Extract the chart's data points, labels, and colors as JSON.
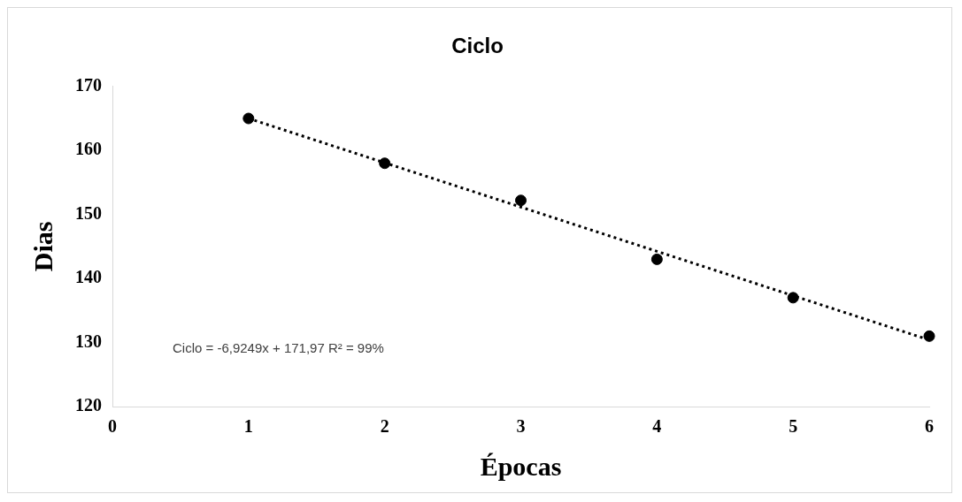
{
  "chart_data": {
    "type": "scatter",
    "title": "Ciclo",
    "xlabel": "Épocas",
    "ylabel": "Dias",
    "x": [
      1,
      2,
      3,
      4,
      5,
      6
    ],
    "series": [
      {
        "type": "scatter",
        "color": "#000000",
        "marker": "circle",
        "values": [
          165,
          158,
          152.2,
          143,
          137,
          131
        ]
      },
      {
        "type": "line",
        "color": "#000000",
        "line_style": "dotted",
        "marker": "none",
        "x": [
          1,
          6
        ],
        "values": [
          165.0,
          130.4
        ]
      }
    ],
    "xlim": [
      0,
      6
    ],
    "xticks": [
      0,
      1,
      2,
      3,
      4,
      5,
      6
    ],
    "ylim": [
      120,
      170
    ],
    "yticks": [
      120,
      130,
      140,
      150,
      160,
      170
    ],
    "grid": false,
    "legend": false,
    "annotations": [
      "Ciclo = -6,9249x + 171,97 R² = 99%"
    ]
  }
}
